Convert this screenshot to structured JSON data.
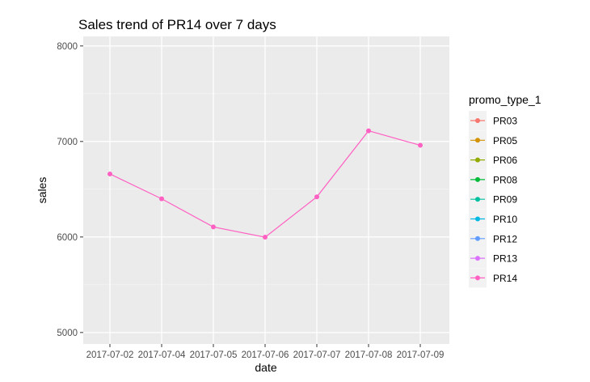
{
  "chart_data": {
    "type": "line",
    "title": "Sales trend of PR14 over 7 days",
    "xlabel": "date",
    "ylabel": "sales",
    "x": [
      "2017-07-02",
      "2017-07-04",
      "2017-07-05",
      "2017-07-06",
      "2017-07-07",
      "2017-07-08",
      "2017-07-09"
    ],
    "ylim": [
      4880,
      8100
    ],
    "yticks": [
      5000,
      6000,
      7000,
      8000
    ],
    "grid": true,
    "legend_position": "right",
    "legend_title": "promo_type_1",
    "legend": [
      {
        "name": "PR03",
        "color": "#F8766D"
      },
      {
        "name": "PR05",
        "color": "#D39200"
      },
      {
        "name": "PR06",
        "color": "#93AA00"
      },
      {
        "name": "PR08",
        "color": "#00BA38"
      },
      {
        "name": "PR09",
        "color": "#00C19F"
      },
      {
        "name": "PR10",
        "color": "#00B9E3"
      },
      {
        "name": "PR12",
        "color": "#619CFF"
      },
      {
        "name": "PR13",
        "color": "#DB72FB"
      },
      {
        "name": "PR14",
        "color": "#FF61C3"
      }
    ],
    "series": [
      {
        "name": "PR14",
        "color": "#FF61C3",
        "values": [
          6660,
          6400,
          6105,
          5998,
          6420,
          7112,
          6960
        ]
      }
    ]
  }
}
